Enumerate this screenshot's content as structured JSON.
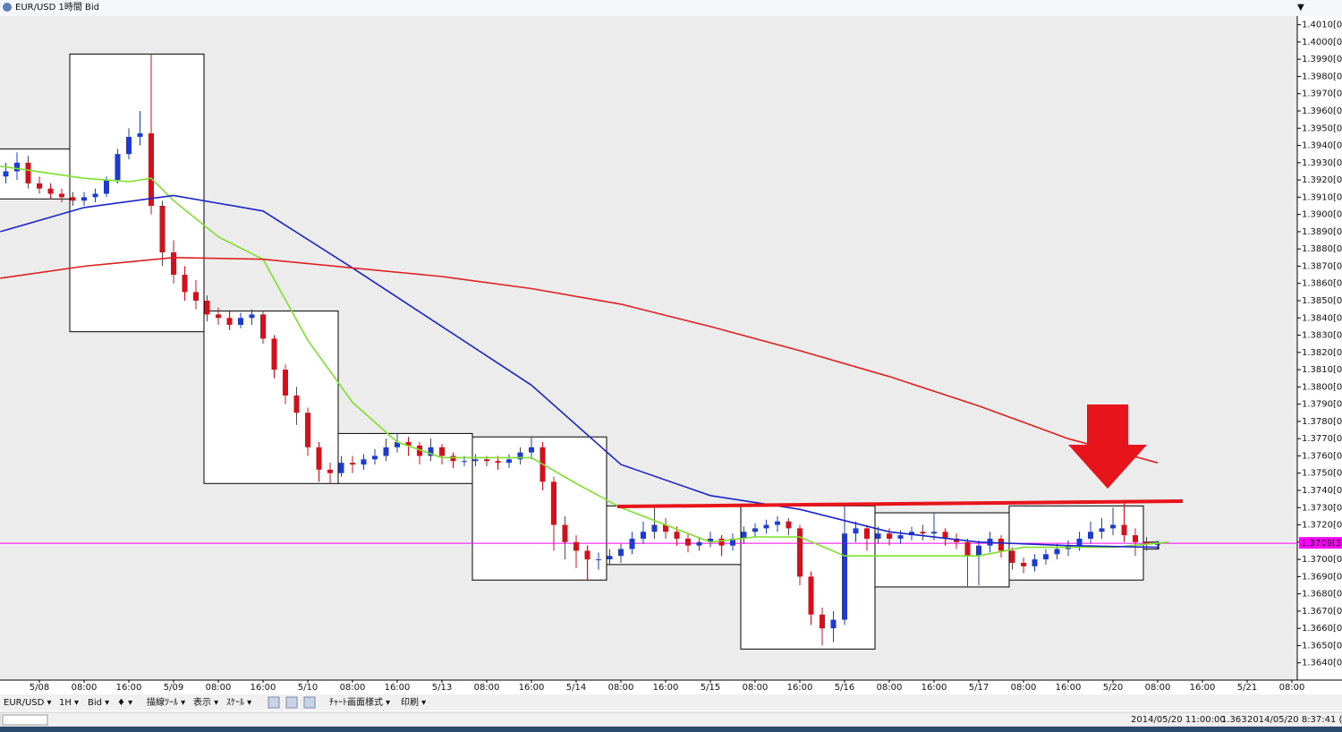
{
  "window_title": "EUR/USD 1時間 Bid",
  "toolbar": [
    "EUR/USD ▾",
    "1H ▾",
    "Bid ▾",
    "♦ ▾",
    "描線ﾂｰﾙ ▾",
    "表示 ▾",
    "ｽｹｰﾙ ▾",
    "ﾁｬｰﾄ画面様式 ▾",
    "印刷 ▾"
  ],
  "status": [
    "2014/05/20 11:00:00",
    "1.363",
    "2014/05/20 8:37:41 (Lo"
  ],
  "chart_data": {
    "type": "candlestick",
    "up_color": "#1c3bd4",
    "down_color": "#d4101c",
    "xlim": [
      -7.04,
      224.96
    ],
    "ylim": [
      1.363,
      1.4015
    ],
    "xticks": [
      {
        "value": 0,
        "label": "5/08"
      },
      {
        "value": 8,
        "label": "08:00"
      },
      {
        "value": 16,
        "label": "16:00"
      },
      {
        "value": 24,
        "label": "5/09"
      },
      {
        "value": 32,
        "label": "08:00"
      },
      {
        "value": 40,
        "label": "16:00"
      },
      {
        "value": 48,
        "label": "5/10"
      },
      {
        "value": 56,
        "label": "08:00"
      },
      {
        "value": 64,
        "label": "16:00"
      },
      {
        "value": 72,
        "label": "5/13"
      },
      {
        "value": 80,
        "label": "08:00"
      },
      {
        "value": 88,
        "label": "16:00"
      },
      {
        "value": 96,
        "label": "5/14"
      },
      {
        "value": 104,
        "label": "08:00"
      },
      {
        "value": 112,
        "label": "16:00"
      },
      {
        "value": 120,
        "label": "5/15"
      },
      {
        "value": 128,
        "label": "08:00"
      },
      {
        "value": 136,
        "label": "16:00"
      },
      {
        "value": 144,
        "label": "5/16"
      },
      {
        "value": 152,
        "label": "08:00"
      },
      {
        "value": 160,
        "label": "16:00"
      },
      {
        "value": 168,
        "label": "5/17"
      },
      {
        "value": 176,
        "label": "08:00"
      },
      {
        "value": 184,
        "label": "16:00"
      },
      {
        "value": 192,
        "label": "5/20"
      },
      {
        "value": 200,
        "label": "08:00"
      },
      {
        "value": 208,
        "label": "16:00"
      },
      {
        "value": 216,
        "label": "5/21"
      },
      {
        "value": 224,
        "label": "08:00"
      }
    ],
    "yticks": [
      {
        "value": 1.364,
        "label": "1.3640[0]"
      },
      {
        "value": 1.365,
        "label": "1.3650[0]"
      },
      {
        "value": 1.366,
        "label": "1.3660[0]"
      },
      {
        "value": 1.367,
        "label": "1.3670[0]"
      },
      {
        "value": 1.368,
        "label": "1.3680[0]"
      },
      {
        "value": 1.369,
        "label": "1.3690[0]"
      },
      {
        "value": 1.37,
        "label": "1.3700[0]"
      },
      {
        "value": 1.371,
        "label": "1.3710[0]"
      },
      {
        "value": 1.372,
        "label": "1.3720[0]"
      },
      {
        "value": 1.373,
        "label": "1.3730[0]"
      },
      {
        "value": 1.374,
        "label": "1.3740[0]"
      },
      {
        "value": 1.375,
        "label": "1.3750[0]"
      },
      {
        "value": 1.376,
        "label": "1.3760[0]"
      },
      {
        "value": 1.377,
        "label": "1.3770[0]"
      },
      {
        "value": 1.378,
        "label": "1.3780[0]"
      },
      {
        "value": 1.379,
        "label": "1.3790[0]"
      },
      {
        "value": 1.38,
        "label": "1.3800[0]"
      },
      {
        "value": 1.381,
        "label": "1.3810[0]"
      },
      {
        "value": 1.382,
        "label": "1.3820[0]"
      },
      {
        "value": 1.383,
        "label": "1.3830[0]"
      },
      {
        "value": 1.384,
        "label": "1.3840[0]"
      },
      {
        "value": 1.385,
        "label": "1.3850[0]"
      },
      {
        "value": 1.386,
        "label": "1.3860[0]"
      },
      {
        "value": 1.387,
        "label": "1.3870[0]"
      },
      {
        "value": 1.388,
        "label": "1.3880[0]"
      },
      {
        "value": 1.389,
        "label": "1.3890[0]"
      },
      {
        "value": 1.39,
        "label": "1.3900[0]"
      },
      {
        "value": 1.391,
        "label": "1.3910[0]"
      },
      {
        "value": 1.392,
        "label": "1.3920[0]"
      },
      {
        "value": 1.393,
        "label": "1.3930[0]"
      },
      {
        "value": 1.394,
        "label": "1.3940[0]"
      },
      {
        "value": 1.395,
        "label": "1.3950[0]"
      },
      {
        "value": 1.396,
        "label": "1.3960[0]"
      },
      {
        "value": 1.397,
        "label": "1.3970[0]"
      },
      {
        "value": 1.398,
        "label": "1.3980[0]"
      },
      {
        "value": 1.399,
        "label": "1.3990[0]"
      },
      {
        "value": 1.4,
        "label": "1.4000[0]"
      },
      {
        "value": 1.401,
        "label": "1.4010[0]"
      }
    ],
    "current_price": 1.37093,
    "current_price_label": "1.3709[3",
    "current_color": "#ff00ff",
    "ranges": [
      {
        "start": -18.56,
        "end": 5.44,
        "high": 1.3938,
        "low": 1.3909
      },
      {
        "start": 5.44,
        "end": 29.44,
        "high": 1.3993,
        "low": 1.3832
      },
      {
        "start": 29.44,
        "end": 53.44,
        "high": 1.3844,
        "low": 1.3744
      },
      {
        "start": 53.44,
        "end": 77.44,
        "high": 1.3773,
        "low": 1.3744
      },
      {
        "start": 77.44,
        "end": 101.44,
        "high": 1.3771,
        "low": 1.3688
      },
      {
        "start": 101.44,
        "end": 125.44,
        "high": 1.3731,
        "low": 1.3697
      },
      {
        "start": 125.44,
        "end": 149.44,
        "high": 1.3731,
        "low": 1.3648
      },
      {
        "start": 149.44,
        "end": 173.44,
        "high": 1.3727,
        "low": 1.3684
      },
      {
        "start": 173.44,
        "end": 197.44,
        "high": 1.3731,
        "low": 1.3688
      },
      {
        "start": 197.44,
        "end": 200.16,
        "high": 1.371,
        "low": 1.3706
      }
    ],
    "series": [
      {
        "color": "#7ee02a",
        "x": [
          -7,
          8,
          16,
          20,
          24,
          32,
          40,
          48,
          56,
          64,
          72,
          88,
          96,
          104,
          120,
          128,
          136,
          144,
          152,
          168,
          176,
          192,
          202
        ],
        "values": [
          1.3928,
          1.3921,
          1.3919,
          1.3921,
          1.3908,
          1.3887,
          1.3874,
          1.3827,
          1.3791,
          1.3768,
          1.3759,
          1.3759,
          1.3744,
          1.373,
          1.371,
          1.3713,
          1.3713,
          1.3702,
          1.3702,
          1.3702,
          1.3707,
          1.3707,
          1.371
        ]
      },
      {
        "color": "#1a24c8",
        "x": [
          -7,
          8,
          24,
          40,
          56,
          72,
          88,
          104,
          120,
          136,
          152,
          168,
          184,
          200
        ],
        "values": [
          1.389,
          1.3904,
          1.3911,
          1.3902,
          1.3869,
          1.3835,
          1.3801,
          1.3755,
          1.3737,
          1.3729,
          1.3716,
          1.371,
          1.3708,
          1.3707
        ]
      },
      {
        "color": "#e02020",
        "x": [
          -7,
          8,
          24,
          40,
          56,
          72,
          88,
          104,
          120,
          136,
          152,
          168,
          184,
          200
        ],
        "values": [
          1.3863,
          1.387,
          1.3875,
          1.3874,
          1.3869,
          1.3864,
          1.3857,
          1.3848,
          1.3835,
          1.3821,
          1.3806,
          1.3789,
          1.377,
          1.3756
        ]
      }
    ],
    "x": [
      -6,
      -4,
      -2,
      0,
      2,
      4,
      6,
      8,
      10,
      12,
      14,
      16,
      18,
      20,
      22,
      24,
      26,
      28,
      30,
      32,
      34,
      36,
      38,
      40,
      42,
      44,
      46,
      48,
      50,
      52,
      54,
      56,
      58,
      60,
      62,
      64,
      66,
      68,
      70,
      72,
      74,
      76,
      78,
      80,
      82,
      84,
      86,
      88,
      90,
      92,
      94,
      96,
      98,
      100,
      102,
      104,
      106,
      108,
      110,
      112,
      114,
      116,
      118,
      120,
      122,
      124,
      126,
      128,
      130,
      132,
      134,
      136,
      138,
      140,
      142,
      144,
      146,
      148,
      150,
      152,
      154,
      156,
      158,
      160,
      162,
      164,
      166,
      168,
      170,
      172,
      174,
      176,
      178,
      180,
      182,
      184,
      186,
      188,
      190,
      192,
      194,
      196,
      198,
      200
    ],
    "ohlc": [
      [
        1.3922,
        1.393,
        1.3918,
        1.3925
      ],
      [
        1.3925,
        1.3936,
        1.392,
        1.393
      ],
      [
        1.393,
        1.3934,
        1.3915,
        1.3918
      ],
      [
        1.3918,
        1.3922,
        1.3912,
        1.3915
      ],
      [
        1.3915,
        1.3918,
        1.3909,
        1.3912
      ],
      [
        1.3912,
        1.3915,
        1.3907,
        1.391
      ],
      [
        1.391,
        1.3913,
        1.3905,
        1.3908
      ],
      [
        1.3908,
        1.3913,
        1.3905,
        1.391
      ],
      [
        1.391,
        1.3915,
        1.3907,
        1.3912
      ],
      [
        1.3912,
        1.3922,
        1.391,
        1.392
      ],
      [
        1.392,
        1.3938,
        1.3918,
        1.3935
      ],
      [
        1.3935,
        1.395,
        1.3932,
        1.3945
      ],
      [
        1.3945,
        1.396,
        1.394,
        1.3947
      ],
      [
        1.3947,
        1.3993,
        1.39,
        1.3905
      ],
      [
        1.3905,
        1.3908,
        1.387,
        1.3878
      ],
      [
        1.3878,
        1.3885,
        1.386,
        1.3865
      ],
      [
        1.3865,
        1.387,
        1.385,
        1.3855
      ],
      [
        1.3855,
        1.3862,
        1.3845,
        1.385
      ],
      [
        1.385,
        1.3853,
        1.3838,
        1.3842
      ],
      [
        1.3842,
        1.3846,
        1.3836,
        1.384
      ],
      [
        1.384,
        1.3844,
        1.3833,
        1.3836
      ],
      [
        1.3836,
        1.3843,
        1.3834,
        1.384
      ],
      [
        1.384,
        1.3845,
        1.3836,
        1.3842
      ],
      [
        1.3842,
        1.3844,
        1.3825,
        1.3828
      ],
      [
        1.3828,
        1.383,
        1.3805,
        1.381
      ],
      [
        1.381,
        1.3813,
        1.379,
        1.3795
      ],
      [
        1.3795,
        1.38,
        1.3778,
        1.3785
      ],
      [
        1.3785,
        1.3788,
        1.376,
        1.3765
      ],
      [
        1.3765,
        1.3768,
        1.3745,
        1.3752
      ],
      [
        1.3752,
        1.3756,
        1.3744,
        1.375
      ],
      [
        1.375,
        1.376,
        1.3748,
        1.3756
      ],
      [
        1.3756,
        1.376,
        1.375,
        1.3755
      ],
      [
        1.3755,
        1.3761,
        1.3752,
        1.3758
      ],
      [
        1.3758,
        1.3764,
        1.3755,
        1.376
      ],
      [
        1.376,
        1.377,
        1.3757,
        1.3765
      ],
      [
        1.3765,
        1.3773,
        1.3762,
        1.3768
      ],
      [
        1.3768,
        1.3771,
        1.376,
        1.3766
      ],
      [
        1.3766,
        1.3768,
        1.3755,
        1.376
      ],
      [
        1.376,
        1.377,
        1.3757,
        1.3765
      ],
      [
        1.3765,
        1.3767,
        1.3755,
        1.376
      ],
      [
        1.376,
        1.3762,
        1.3753,
        1.3757
      ],
      [
        1.3757,
        1.376,
        1.3754,
        1.3757
      ],
      [
        1.3757,
        1.3761,
        1.3754,
        1.3758
      ],
      [
        1.3758,
        1.376,
        1.3754,
        1.3757
      ],
      [
        1.3757,
        1.376,
        1.3752,
        1.3756
      ],
      [
        1.3756,
        1.3761,
        1.3753,
        1.3758
      ],
      [
        1.3758,
        1.3765,
        1.3755,
        1.3762
      ],
      [
        1.3762,
        1.3771,
        1.3758,
        1.3765
      ],
      [
        1.3765,
        1.3768,
        1.374,
        1.3745
      ],
      [
        1.3745,
        1.3748,
        1.3705,
        1.372
      ],
      [
        1.372,
        1.3725,
        1.37,
        1.371
      ],
      [
        1.371,
        1.3714,
        1.3695,
        1.3705
      ],
      [
        1.3705,
        1.3708,
        1.3688,
        1.37
      ],
      [
        1.37,
        1.3704,
        1.3694,
        1.37
      ],
      [
        1.37,
        1.3706,
        1.3697,
        1.3702
      ],
      [
        1.3702,
        1.3709,
        1.3698,
        1.3706
      ],
      [
        1.3706,
        1.3716,
        1.3703,
        1.3712
      ],
      [
        1.3712,
        1.3722,
        1.3709,
        1.3716
      ],
      [
        1.3716,
        1.373,
        1.3712,
        1.372
      ],
      [
        1.372,
        1.3724,
        1.3712,
        1.3716
      ],
      [
        1.3716,
        1.3719,
        1.3708,
        1.3712
      ],
      [
        1.3712,
        1.3715,
        1.3704,
        1.3708
      ],
      [
        1.3708,
        1.3713,
        1.3705,
        1.371
      ],
      [
        1.371,
        1.3716,
        1.3707,
        1.3712
      ],
      [
        1.3712,
        1.3714,
        1.3702,
        1.3708
      ],
      [
        1.3708,
        1.3715,
        1.3705,
        1.3712
      ],
      [
        1.3712,
        1.3719,
        1.3709,
        1.3716
      ],
      [
        1.3716,
        1.3721,
        1.3713,
        1.3718
      ],
      [
        1.3718,
        1.3723,
        1.3715,
        1.372
      ],
      [
        1.372,
        1.3725,
        1.3716,
        1.3722
      ],
      [
        1.3722,
        1.3724,
        1.3714,
        1.3718
      ],
      [
        1.3718,
        1.372,
        1.3685,
        1.369
      ],
      [
        1.369,
        1.3693,
        1.3662,
        1.3668
      ],
      [
        1.3668,
        1.3672,
        1.365,
        1.366
      ],
      [
        1.366,
        1.367,
        1.3652,
        1.3665
      ],
      [
        1.3665,
        1.3732,
        1.3662,
        1.3715
      ],
      [
        1.3715,
        1.3722,
        1.371,
        1.3718
      ],
      [
        1.3718,
        1.372,
        1.3705,
        1.3712
      ],
      [
        1.3712,
        1.3719,
        1.3709,
        1.3715
      ],
      [
        1.3715,
        1.3718,
        1.3708,
        1.3712
      ],
      [
        1.3712,
        1.3717,
        1.3709,
        1.3714
      ],
      [
        1.3714,
        1.3719,
        1.3711,
        1.3716
      ],
      [
        1.3716,
        1.372,
        1.3711,
        1.3715
      ],
      [
        1.3715,
        1.3727,
        1.3711,
        1.3716
      ],
      [
        1.3716,
        1.3718,
        1.3708,
        1.3712
      ],
      [
        1.3712,
        1.3715,
        1.3706,
        1.371
      ],
      [
        1.371,
        1.3712,
        1.3684,
        1.3702
      ],
      [
        1.3702,
        1.3711,
        1.3685,
        1.3708
      ],
      [
        1.3708,
        1.3716,
        1.3704,
        1.3712
      ],
      [
        1.3712,
        1.3714,
        1.3701,
        1.3705
      ],
      [
        1.3705,
        1.3707,
        1.3694,
        1.3698
      ],
      [
        1.3698,
        1.3701,
        1.3692,
        1.3696
      ],
      [
        1.3696,
        1.3703,
        1.3693,
        1.37
      ],
      [
        1.37,
        1.3706,
        1.3697,
        1.3703
      ],
      [
        1.3703,
        1.3709,
        1.37,
        1.3706
      ],
      [
        1.3706,
        1.3711,
        1.3702,
        1.3708
      ],
      [
        1.3708,
        1.3716,
        1.3705,
        1.3712
      ],
      [
        1.3712,
        1.3722,
        1.3709,
        1.3716
      ],
      [
        1.3716,
        1.3724,
        1.3712,
        1.3718
      ],
      [
        1.3718,
        1.373,
        1.3714,
        1.372
      ],
      [
        1.372,
        1.3734,
        1.371,
        1.3714
      ],
      [
        1.3714,
        1.3718,
        1.3702,
        1.371
      ],
      [
        1.371,
        1.3713,
        1.3705,
        1.3709
      ],
      [
        1.3709,
        1.3711,
        1.3706,
        1.3709
      ]
    ]
  }
}
